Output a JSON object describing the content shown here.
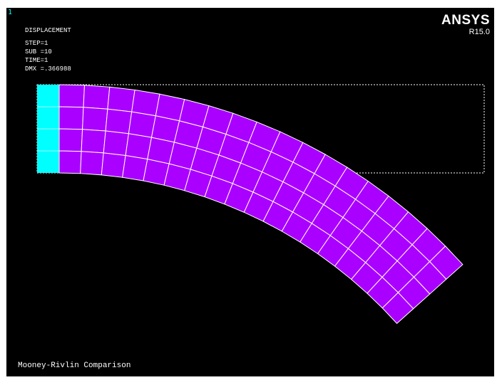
{
  "viewport": {
    "window_number": "1",
    "legend": {
      "title": "DISPLACEMENT",
      "step": "STEP=1",
      "sub": "SUB =10",
      "time": "TIME=1",
      "dmx": "DMX =.366988"
    },
    "logo": {
      "brand": "ANSYS",
      "release": "R15.0"
    },
    "caption": "Mooney-Rivlin Comparison"
  },
  "colors": {
    "background": "#000000",
    "deformed_mesh_fill": "#aa00ff",
    "support_fill": "#00ffff",
    "mesh_lines": "#ffffff",
    "undeformed_outline": "#ffffff"
  },
  "mesh": {
    "rows": 4,
    "deformed_columns": 18
  },
  "icons": {
    "support": "fixed-support-icon"
  }
}
